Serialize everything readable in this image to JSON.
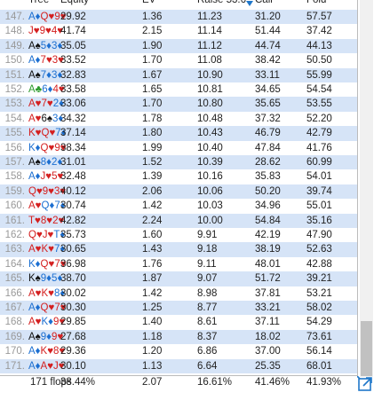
{
  "header": {
    "columns": [
      "Tree",
      "Equity",
      "EV",
      "Raise 53.6",
      "Call",
      "Fold"
    ]
  },
  "rows": [
    {
      "index": "147.",
      "cards": [
        "A♦",
        "Q♥",
        "9♥"
      ],
      "equity": "29.92",
      "ev": "1.36",
      "raise": "11.23",
      "call": "31.20",
      "fold": "57.57"
    },
    {
      "index": "148.",
      "cards": [
        "J♥",
        "9♥",
        "4♥"
      ],
      "equity": "41.74",
      "ev": "2.15",
      "raise": "11.14",
      "call": "51.44",
      "fold": "37.42"
    },
    {
      "index": "149.",
      "cards": [
        "A♠",
        "5♦",
        "3♦"
      ],
      "equity": "35.05",
      "ev": "1.90",
      "raise": "11.12",
      "call": "44.74",
      "fold": "44.13"
    },
    {
      "index": "150.",
      "cards": [
        "A♦",
        "7♥",
        "3♥"
      ],
      "equity": "33.52",
      "ev": "1.70",
      "raise": "11.08",
      "call": "38.42",
      "fold": "50.50"
    },
    {
      "index": "151.",
      "cards": [
        "A♠",
        "7♦",
        "3♦"
      ],
      "equity": "32.83",
      "ev": "1.67",
      "raise": "10.90",
      "call": "33.11",
      "fold": "55.99"
    },
    {
      "index": "152.",
      "cards": [
        "A♣",
        "6♦",
        "4♥"
      ],
      "equity": "33.58",
      "ev": "1.65",
      "raise": "10.81",
      "call": "34.65",
      "fold": "54.54"
    },
    {
      "index": "153.",
      "cards": [
        "A♥",
        "7♥",
        "2♦"
      ],
      "equity": "33.06",
      "ev": "1.70",
      "raise": "10.80",
      "call": "35.65",
      "fold": "53.55"
    },
    {
      "index": "154.",
      "cards": [
        "A♥",
        "6♠",
        "3♦"
      ],
      "equity": "34.32",
      "ev": "1.78",
      "raise": "10.48",
      "call": "37.32",
      "fold": "52.20"
    },
    {
      "index": "155.",
      "cards": [
        "K♥",
        "Q♥",
        "7♦"
      ],
      "equity": "37.14",
      "ev": "1.80",
      "raise": "10.43",
      "call": "46.79",
      "fold": "42.79"
    },
    {
      "index": "156.",
      "cards": [
        "K♦",
        "Q♥",
        "9♥"
      ],
      "equity": "38.34",
      "ev": "1.99",
      "raise": "10.40",
      "call": "47.84",
      "fold": "41.76"
    },
    {
      "index": "157.",
      "cards": [
        "A♠",
        "8♦",
        "2♦"
      ],
      "equity": "31.01",
      "ev": "1.52",
      "raise": "10.39",
      "call": "28.62",
      "fold": "60.99"
    },
    {
      "index": "158.",
      "cards": [
        "A♦",
        "J♥",
        "5♥"
      ],
      "equity": "32.48",
      "ev": "1.39",
      "raise": "10.16",
      "call": "35.83",
      "fold": "54.01"
    },
    {
      "index": "159.",
      "cards": [
        "Q♥",
        "9♥",
        "3♥"
      ],
      "equity": "40.12",
      "ev": "2.06",
      "raise": "10.06",
      "call": "50.20",
      "fold": "39.74"
    },
    {
      "index": "160.",
      "cards": [
        "A♥",
        "Q♦",
        "7♦"
      ],
      "equity": "30.74",
      "ev": "1.42",
      "raise": "10.03",
      "call": "34.96",
      "fold": "55.01"
    },
    {
      "index": "161.",
      "cards": [
        "T♥",
        "8♥",
        "2♥"
      ],
      "equity": "42.82",
      "ev": "2.24",
      "raise": "10.00",
      "call": "54.84",
      "fold": "35.16"
    },
    {
      "index": "162.",
      "cards": [
        "Q♥",
        "J♥",
        "T♦"
      ],
      "equity": "35.73",
      "ev": "1.60",
      "raise": "9.91",
      "call": "42.19",
      "fold": "47.90"
    },
    {
      "index": "163.",
      "cards": [
        "A♥",
        "K♥",
        "7♦"
      ],
      "equity": "30.65",
      "ev": "1.43",
      "raise": "9.18",
      "call": "38.19",
      "fold": "52.63"
    },
    {
      "index": "164.",
      "cards": [
        "K♦",
        "Q♥",
        "7♥"
      ],
      "equity": "36.98",
      "ev": "1.76",
      "raise": "9.11",
      "call": "48.01",
      "fold": "42.88"
    },
    {
      "index": "165.",
      "cards": [
        "K♠",
        "9♦",
        "5♦"
      ],
      "equity": "38.70",
      "ev": "1.87",
      "raise": "9.07",
      "call": "51.72",
      "fold": "39.21"
    },
    {
      "index": "166.",
      "cards": [
        "A♥",
        "K♥",
        "8♦"
      ],
      "equity": "30.02",
      "ev": "1.42",
      "raise": "8.98",
      "call": "37.81",
      "fold": "53.21"
    },
    {
      "index": "167.",
      "cards": [
        "A♦",
        "Q♥",
        "7♥"
      ],
      "equity": "30.30",
      "ev": "1.25",
      "raise": "8.77",
      "call": "33.21",
      "fold": "58.02"
    },
    {
      "index": "168.",
      "cards": [
        "A♥",
        "K♦",
        "9♥"
      ],
      "equity": "29.85",
      "ev": "1.40",
      "raise": "8.61",
      "call": "37.11",
      "fold": "54.29"
    },
    {
      "index": "169.",
      "cards": [
        "A♠",
        "9♦",
        "9♥"
      ],
      "equity": "27.68",
      "ev": "1.18",
      "raise": "8.37",
      "call": "18.02",
      "fold": "73.61"
    },
    {
      "index": "170.",
      "cards": [
        "A♦",
        "K♥",
        "8♥"
      ],
      "equity": "29.36",
      "ev": "1.20",
      "raise": "6.86",
      "call": "37.00",
      "fold": "56.14"
    },
    {
      "index": "171.",
      "cards": [
        "A♦",
        "A♥",
        "J♥"
      ],
      "equity": "30.10",
      "ev": "1.13",
      "raise": "6.64",
      "call": "25.35",
      "fold": "68.01"
    }
  ],
  "footer": {
    "label": "171 flops",
    "equity": "38.44%",
    "ev": "2.07",
    "raise": "16.61%",
    "call": "41.46%",
    "fold": "41.93%"
  }
}
